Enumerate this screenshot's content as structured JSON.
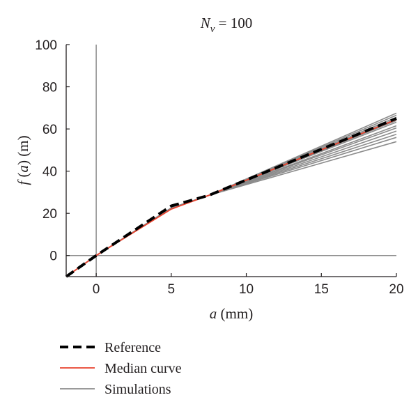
{
  "chart_data": {
    "type": "line",
    "title": {
      "symbol": "N",
      "subscript": "v",
      "rest": " = 100"
    },
    "xlabel": {
      "var": "a",
      "unit": " (mm)"
    },
    "ylabel": {
      "var": "f",
      "rest": " (",
      "arg": "a",
      "unit": ") (m)"
    },
    "xlim": [
      -2,
      20
    ],
    "ylim": [
      -10,
      100
    ],
    "xticks": [
      0,
      5,
      10,
      15,
      20
    ],
    "yticks": [
      0,
      20,
      40,
      60,
      80,
      100
    ],
    "grid": false,
    "zero_lines": true,
    "legend_position": "bottom-left, below plot",
    "colors": {
      "reference": "#000000",
      "median": "#e8412c",
      "simulations": "#8c8c8c",
      "zero_line": "#8c8c8c",
      "axis": "#231f20"
    },
    "series": [
      {
        "name": "Simulations",
        "style": "solid-gray",
        "curves": [
          {
            "x": [
              -2,
              0,
              5,
              7.5,
              20
            ],
            "y": [
              -10,
              0,
              22.5,
              28.5,
              67.5
            ]
          },
          {
            "x": [
              -2,
              0,
              5,
              7.5,
              20
            ],
            "y": [
              -10,
              0,
              22.5,
              28.5,
              66.5
            ]
          },
          {
            "x": [
              -2,
              0,
              5,
              7.5,
              20
            ],
            "y": [
              -10,
              0,
              22.5,
              28.5,
              65.5
            ]
          },
          {
            "x": [
              -2,
              0,
              5,
              7.5,
              20
            ],
            "y": [
              -10,
              0,
              22.5,
              28.5,
              64.8
            ]
          },
          {
            "x": [
              -2,
              0,
              5,
              7.5,
              20
            ],
            "y": [
              -10,
              0,
              22.5,
              28.5,
              64.0
            ]
          },
          {
            "x": [
              -2,
              0,
              5,
              7.5,
              20
            ],
            "y": [
              -10,
              0,
              22.5,
              28.5,
              63.2
            ]
          },
          {
            "x": [
              -2,
              0,
              5,
              7.5,
              20
            ],
            "y": [
              -10,
              0,
              22.5,
              28.5,
              61.5
            ]
          },
          {
            "x": [
              -2,
              0,
              5,
              7.5,
              20
            ],
            "y": [
              -10,
              0,
              22.5,
              28.5,
              60.5
            ]
          },
          {
            "x": [
              -2,
              0,
              5,
              7.5,
              20
            ],
            "y": [
              -10,
              0,
              22.5,
              28.5,
              59.0
            ]
          },
          {
            "x": [
              -2,
              0,
              5,
              7.5,
              20
            ],
            "y": [
              -10,
              0,
              22.5,
              28.5,
              57.5
            ]
          },
          {
            "x": [
              -2,
              0,
              5,
              7.5,
              20
            ],
            "y": [
              -10,
              0,
              22.5,
              28.5,
              56.0
            ]
          },
          {
            "x": [
              -2,
              0,
              5,
              7.5,
              20
            ],
            "y": [
              -10,
              0,
              22.5,
              28.5,
              54.0
            ]
          }
        ]
      },
      {
        "name": "Median curve",
        "style": "solid-red",
        "x": [
          -2,
          0,
          5,
          7.5,
          20
        ],
        "y": [
          -10,
          0,
          22,
          28.5,
          64.5
        ]
      },
      {
        "name": "Reference",
        "style": "dashed-black",
        "x": [
          -2,
          0,
          5,
          7.5,
          20
        ],
        "y": [
          -10,
          0,
          23.5,
          28.5,
          65
        ]
      }
    ]
  }
}
